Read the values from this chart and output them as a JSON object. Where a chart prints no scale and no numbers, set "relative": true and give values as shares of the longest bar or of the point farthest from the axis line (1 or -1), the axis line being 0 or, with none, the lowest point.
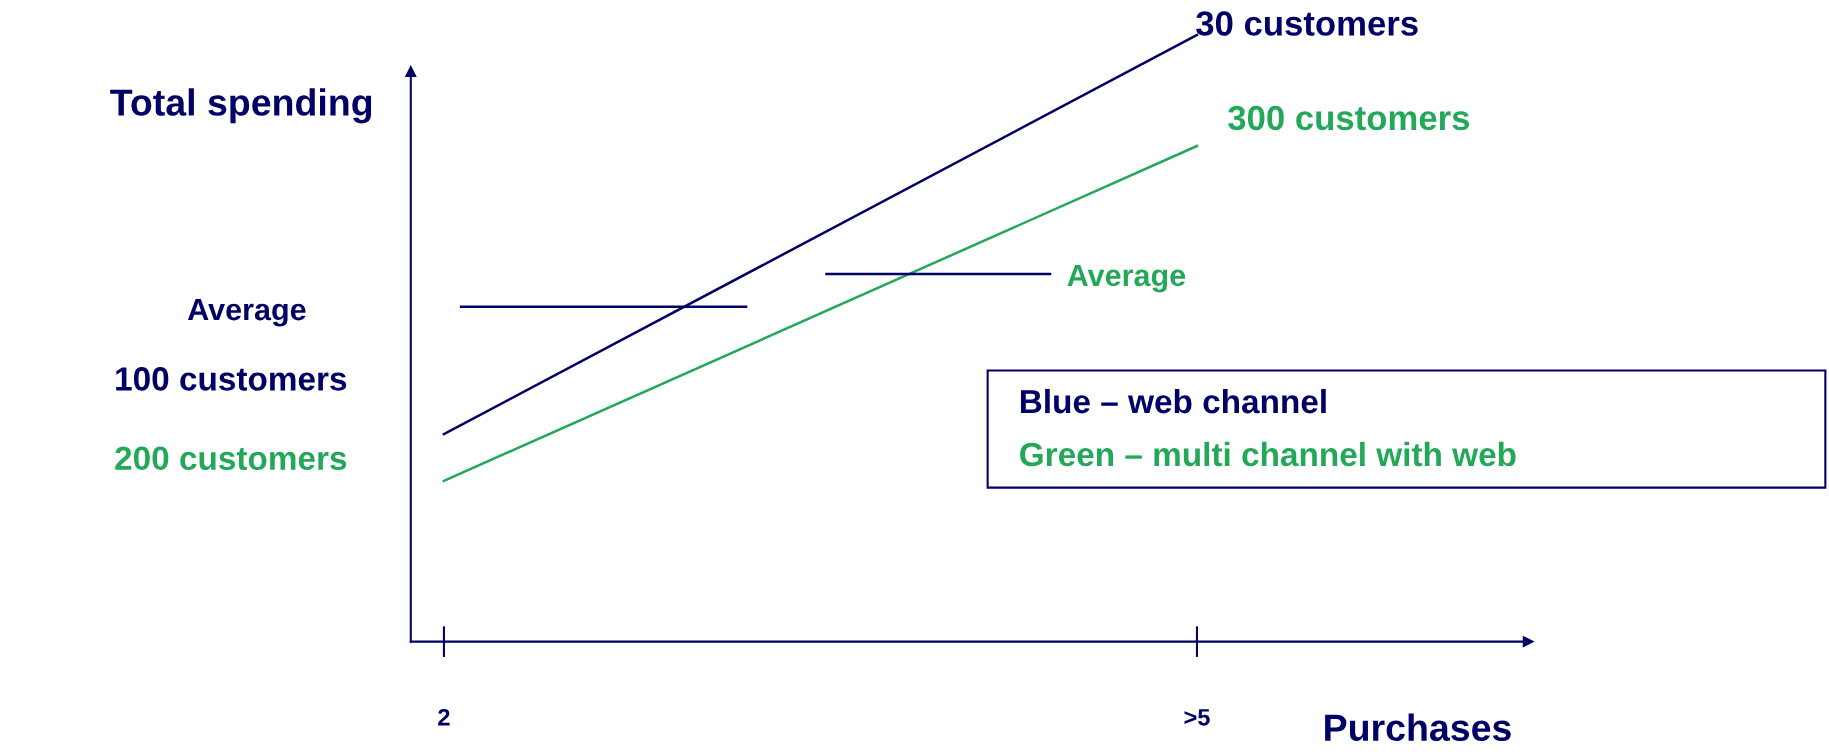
{
  "chart_data": {
    "type": "line",
    "relative": true,
    "ylabel": "Total spending",
    "xlabel": "Purchases",
    "categories": [
      "2",
      ">5"
    ],
    "grid": false,
    "legend": false,
    "marker": "none",
    "line_style": "solid",
    "series": [
      {
        "color": "#000066",
        "values": [
          0.342,
          1
        ]
      },
      {
        "color": "#22a858",
        "values": [
          0.265,
          0.817
        ]
      }
    ],
    "ref_lines": [
      {
        "axis": "y",
        "value": 0.552,
        "label": "Average",
        "color": "#000066"
      },
      {
        "axis": "y",
        "value": 0.606,
        "label": "Average",
        "color": "#000066"
      }
    ],
    "annotations": [
      "30 customers",
      "300 customers",
      "100 customers",
      "200 customers",
      "Blue – web channel",
      "Green – multi channel with web"
    ]
  }
}
